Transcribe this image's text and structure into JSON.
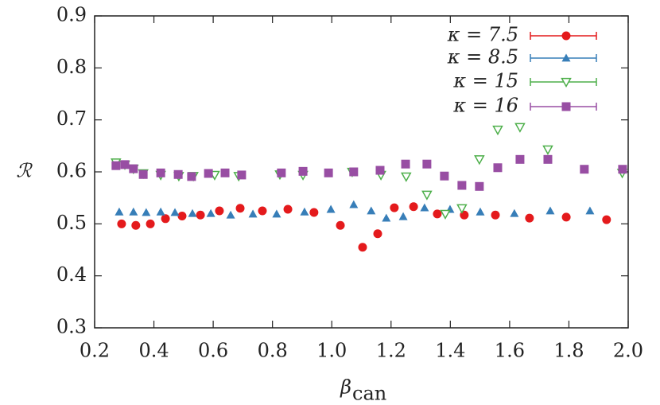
{
  "chart_data": {
    "type": "scatter",
    "y_label": "ℛ",
    "x_label": {
      "symbol": "β",
      "subscript": "can"
    },
    "xlim": [
      0.2,
      2.0
    ],
    "ylim": [
      0.3,
      0.9
    ],
    "xticks": [
      0.2,
      0.4,
      0.6,
      0.8,
      {
        "value": 1.0,
        "label": "1.0"
      },
      1.2,
      1.4,
      1.6,
      1.8,
      {
        "value": 2.0,
        "label": "2.0"
      }
    ],
    "yticks": [
      0.3,
      0.4,
      0.5,
      0.6,
      0.7,
      0.8,
      0.9
    ],
    "legend": "top-right",
    "series": [
      {
        "name": "κ = 7.5",
        "color": "#e41a1c",
        "marker": "circle",
        "x": [
          0.291,
          0.339,
          0.388,
          0.439,
          0.495,
          0.557,
          0.621,
          0.691,
          0.766,
          0.852,
          0.94,
          1.029,
          1.104,
          1.155,
          1.211,
          1.276,
          1.356,
          1.447,
          1.552,
          1.667,
          1.791,
          1.927
        ],
        "values": [
          0.5,
          0.497,
          0.5,
          0.51,
          0.515,
          0.517,
          0.525,
          0.53,
          0.525,
          0.528,
          0.522,
          0.497,
          0.455,
          0.481,
          0.531,
          0.533,
          0.519,
          0.517,
          0.517,
          0.511,
          0.513,
          0.508
        ]
      },
      {
        "name": "κ = 8.5",
        "color": "#377eb8",
        "marker": "triangle",
        "x": [
          0.283,
          0.331,
          0.374,
          0.423,
          0.471,
          0.53,
          0.592,
          0.659,
          0.734,
          0.814,
          0.908,
          0.997,
          1.074,
          1.133,
          1.184,
          1.241,
          1.313,
          1.399,
          1.501,
          1.616,
          1.737,
          1.871
        ],
        "values": [
          0.523,
          0.523,
          0.522,
          0.523,
          0.522,
          0.52,
          0.52,
          0.517,
          0.519,
          0.519,
          0.523,
          0.528,
          0.537,
          0.525,
          0.511,
          0.514,
          0.531,
          0.528,
          0.523,
          0.52,
          0.525,
          0.525
        ]
      },
      {
        "name": "κ = 15",
        "color": "#4daf4a",
        "marker": "triangle-down",
        "x": [
          0.272,
          0.302,
          0.331,
          0.364,
          0.423,
          0.484,
          0.533,
          0.605,
          0.686,
          0.825,
          0.903,
          1.069,
          1.166,
          1.251,
          1.321,
          1.383,
          1.439,
          1.498,
          1.56,
          1.635,
          1.729,
          1.98
        ],
        "values": [
          0.618,
          0.614,
          0.606,
          0.597,
          0.594,
          0.592,
          0.592,
          0.594,
          0.592,
          0.595,
          0.594,
          0.6,
          0.594,
          0.591,
          0.556,
          0.519,
          0.53,
          0.624,
          0.681,
          0.686,
          0.643,
          0.598
        ]
      },
      {
        "name": "κ = 16",
        "color": "#984ea3",
        "marker": "square",
        "x": [
          0.272,
          0.302,
          0.331,
          0.364,
          0.423,
          0.482,
          0.527,
          0.584,
          0.64,
          0.696,
          0.83,
          0.903,
          0.989,
          1.074,
          1.163,
          1.249,
          1.321,
          1.38,
          1.439,
          1.498,
          1.56,
          1.635,
          1.729,
          1.852,
          1.981
        ],
        "values": [
          0.612,
          0.614,
          0.606,
          0.595,
          0.598,
          0.595,
          0.591,
          0.597,
          0.598,
          0.594,
          0.598,
          0.601,
          0.598,
          0.6,
          0.603,
          0.615,
          0.615,
          0.592,
          0.574,
          0.572,
          0.608,
          0.624,
          0.624,
          0.605,
          0.605
        ]
      }
    ]
  }
}
